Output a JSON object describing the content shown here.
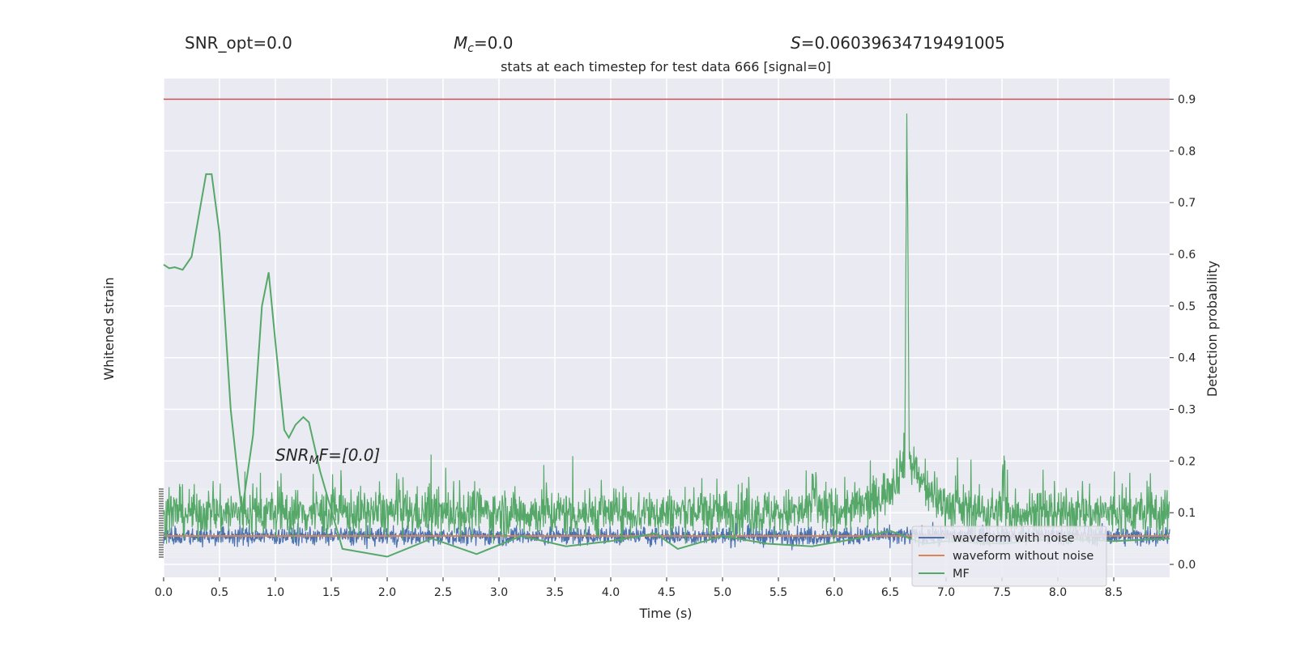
{
  "header": {
    "snr_opt": "SNR_opt=0.0",
    "mc_symbol": "M",
    "mc_subscript": "c",
    "mc_value": "=0.0",
    "s_symbol": "S",
    "s_value": "=0.06039634719491005",
    "snr_mf_symbol": "SNR",
    "snr_mf_subscript": "M",
    "snr_mf_suffix": "F=[0.0]"
  },
  "chart_data": {
    "type": "line",
    "title": "stats at each timestep for test data 666 [signal=0]",
    "xlabel": "Time (s)",
    "ylabel_left": "Whitened strain",
    "ylabel_right": "Detection probability",
    "xlim": [
      0.0,
      9.0
    ],
    "ylim_right": [
      -0.025,
      0.94
    ],
    "x_ticks": [
      "0.0",
      "0.5",
      "1.0",
      "1.5",
      "2.0",
      "2.5",
      "3.0",
      "3.5",
      "4.0",
      "4.5",
      "5.0",
      "5.5",
      "6.0",
      "6.5",
      "7.0",
      "7.5",
      "8.0",
      "8.5"
    ],
    "y_ticks_right": [
      "0.0",
      "0.1",
      "0.2",
      "0.3",
      "0.4",
      "0.5",
      "0.6",
      "0.7",
      "0.8",
      "0.9"
    ],
    "threshold": 0.9,
    "grid": true,
    "legend_position": "lower-right",
    "legend": [
      "waveform with noise",
      "waveform without noise",
      "MF"
    ],
    "colors": {
      "waveform_with_noise": "#4c72b0",
      "waveform_without_noise": "#dd8452",
      "mf": "#55a868",
      "threshold": "#c44e52",
      "axes_bg": "#eaeaf2",
      "grid": "#ffffff"
    },
    "mf_smooth": {
      "x": [
        0.0,
        0.05,
        0.1,
        0.17,
        0.25,
        0.38,
        0.43,
        0.5,
        0.6,
        0.7,
        0.8,
        0.88,
        0.94,
        1.0,
        1.08,
        1.12,
        1.18,
        1.25,
        1.3,
        1.4,
        1.6,
        2.0,
        2.4,
        2.8,
        3.2,
        3.6,
        4.0,
        4.4,
        4.6,
        5.0,
        5.4,
        5.8,
        6.2,
        6.5,
        6.8,
        7.0,
        7.5,
        8.0,
        8.5,
        9.0
      ],
      "y": [
        0.58,
        0.573,
        0.575,
        0.57,
        0.595,
        0.755,
        0.755,
        0.64,
        0.3,
        0.1,
        0.25,
        0.5,
        0.565,
        0.43,
        0.26,
        0.245,
        0.27,
        0.285,
        0.275,
        0.18,
        0.03,
        0.015,
        0.05,
        0.02,
        0.055,
        0.035,
        0.045,
        0.06,
        0.03,
        0.055,
        0.04,
        0.035,
        0.05,
        0.065,
        0.04,
        0.045,
        0.04,
        0.05,
        0.045,
        0.05
      ]
    },
    "mf_noisy": {
      "baseline": 0.1,
      "amplitude": 0.045,
      "peak_x": 6.65,
      "peak_y": 0.9
    },
    "waveform_with_noise": {
      "level": 0.055,
      "amplitude": 0.018
    },
    "waveform_without_noise": {
      "level": 0.055
    }
  }
}
